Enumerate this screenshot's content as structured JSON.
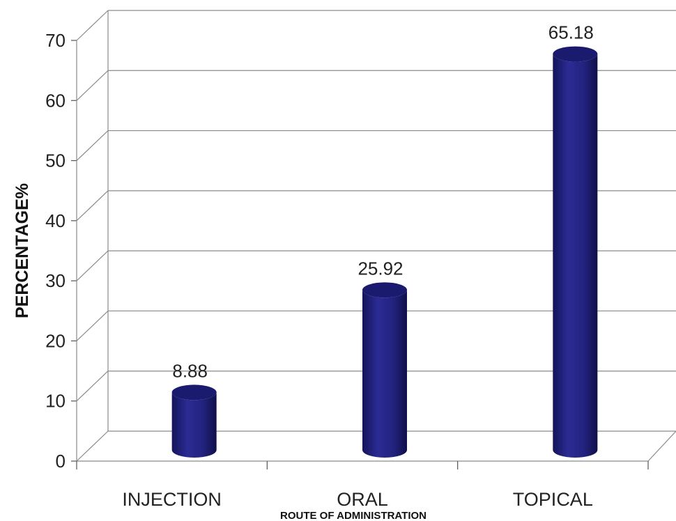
{
  "chart_data": {
    "type": "bar",
    "style": "3d-cylinder",
    "title": "",
    "xlabel": "ROUTE OF ADMINISTRATION",
    "ylabel": "PERCENTAGE%",
    "categories": [
      "INJECTION",
      "ORAL",
      "TOPICAL"
    ],
    "values": [
      8.88,
      25.92,
      65.18
    ],
    "data_labels": [
      "8.88",
      "25.92",
      "65.18"
    ],
    "ylim": [
      0,
      70
    ],
    "y_ticks": [
      "0",
      "10",
      "20",
      "30",
      "40",
      "50",
      "60",
      "70"
    ],
    "grid": true,
    "legend": "none",
    "bar_color": "#1f1f7a"
  }
}
